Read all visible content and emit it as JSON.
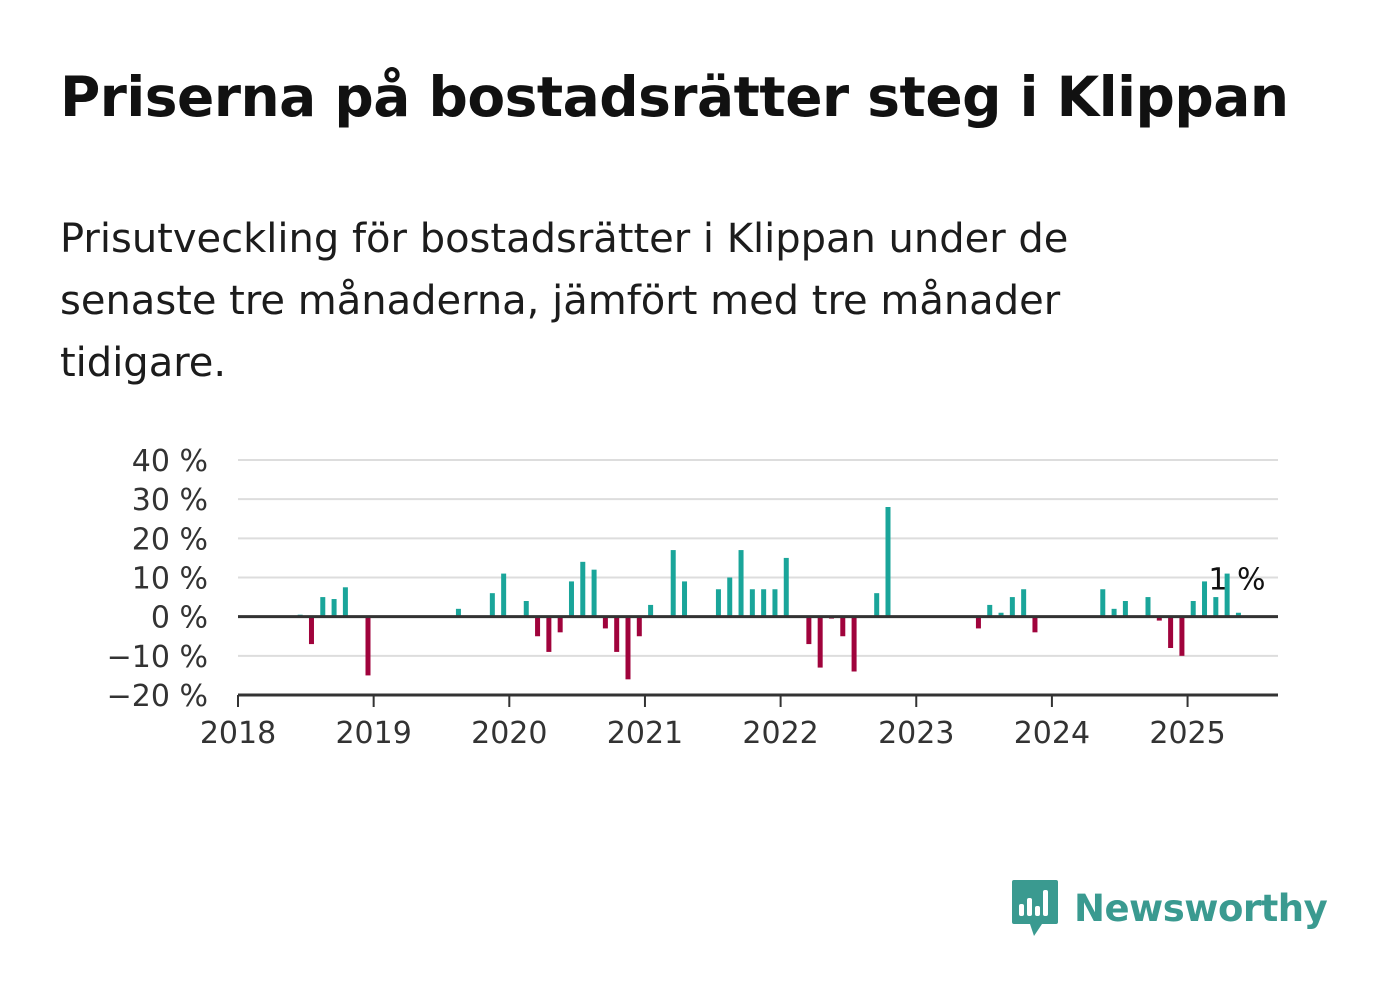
{
  "title": "Priserna på bostadsrätter steg i Klippan",
  "subtitle": "Prisutveckling för bostadsrätter i Klippan under de senaste tre månaderna, jämfört med tre månader tidigare.",
  "brand": {
    "name": "Newsworthy",
    "icon": "newsworthy-logo-icon",
    "color": "#3a9a90"
  },
  "chart_data": {
    "type": "bar",
    "end_label": "1 %",
    "colors": {
      "positive": "#1aa59a",
      "negative": "#a0033c",
      "grid": "#dddddd",
      "axis": "#333333"
    },
    "ylim": [
      -20,
      40
    ],
    "y_ticks": [
      {
        "value": 40,
        "label": "40 %"
      },
      {
        "value": 30,
        "label": "30 %"
      },
      {
        "value": 20,
        "label": "20 %"
      },
      {
        "value": 10,
        "label": "10 %"
      },
      {
        "value": 0,
        "label": "0 %"
      },
      {
        "value": -10,
        "label": "−10 %"
      },
      {
        "value": -20,
        "label": "−20 %"
      }
    ],
    "x_ticks": [
      "2018",
      "2019",
      "2020",
      "2021",
      "2022",
      "2023",
      "2024",
      "2025"
    ],
    "x_range": [
      "2018-01",
      "2025-09"
    ],
    "points": [
      {
        "date": "2018-06",
        "value": 0.5
      },
      {
        "date": "2018-07",
        "value": -7
      },
      {
        "date": "2018-08",
        "value": 5
      },
      {
        "date": "2018-09",
        "value": 4.5
      },
      {
        "date": "2018-10",
        "value": 7.5
      },
      {
        "date": "2018-12",
        "value": -15
      },
      {
        "date": "2019-08",
        "value": 2
      },
      {
        "date": "2019-11",
        "value": 6
      },
      {
        "date": "2019-12",
        "value": 11
      },
      {
        "date": "2020-02",
        "value": 4
      },
      {
        "date": "2020-03",
        "value": -5
      },
      {
        "date": "2020-04",
        "value": -9
      },
      {
        "date": "2020-05",
        "value": -4
      },
      {
        "date": "2020-06",
        "value": 9
      },
      {
        "date": "2020-07",
        "value": 14
      },
      {
        "date": "2020-08",
        "value": 12
      },
      {
        "date": "2020-09",
        "value": -3
      },
      {
        "date": "2020-10",
        "value": -9
      },
      {
        "date": "2020-11",
        "value": -16
      },
      {
        "date": "2020-12",
        "value": -5
      },
      {
        "date": "2021-01",
        "value": 3
      },
      {
        "date": "2021-03",
        "value": 17
      },
      {
        "date": "2021-04",
        "value": 9
      },
      {
        "date": "2021-07",
        "value": 7
      },
      {
        "date": "2021-08",
        "value": 10
      },
      {
        "date": "2021-09",
        "value": 17
      },
      {
        "date": "2021-10",
        "value": 7
      },
      {
        "date": "2021-11",
        "value": 7
      },
      {
        "date": "2021-12",
        "value": 7
      },
      {
        "date": "2022-01",
        "value": 15
      },
      {
        "date": "2022-03",
        "value": -7
      },
      {
        "date": "2022-04",
        "value": -13
      },
      {
        "date": "2022-05",
        "value": -0.5
      },
      {
        "date": "2022-06",
        "value": -5
      },
      {
        "date": "2022-07",
        "value": -14
      },
      {
        "date": "2022-09",
        "value": 6
      },
      {
        "date": "2022-10",
        "value": 28
      },
      {
        "date": "2023-06",
        "value": -3
      },
      {
        "date": "2023-07",
        "value": 3
      },
      {
        "date": "2023-08",
        "value": 1
      },
      {
        "date": "2023-09",
        "value": 5
      },
      {
        "date": "2023-10",
        "value": 7
      },
      {
        "date": "2023-11",
        "value": -4
      },
      {
        "date": "2024-05",
        "value": 7
      },
      {
        "date": "2024-06",
        "value": 2
      },
      {
        "date": "2024-07",
        "value": 4
      },
      {
        "date": "2024-09",
        "value": 5
      },
      {
        "date": "2024-10",
        "value": -1
      },
      {
        "date": "2024-11",
        "value": -8
      },
      {
        "date": "2024-12",
        "value": -10
      },
      {
        "date": "2025-01",
        "value": 4
      },
      {
        "date": "2025-02",
        "value": 9
      },
      {
        "date": "2025-03",
        "value": 5
      },
      {
        "date": "2025-04",
        "value": 11
      },
      {
        "date": "2025-05",
        "value": 1
      }
    ]
  }
}
